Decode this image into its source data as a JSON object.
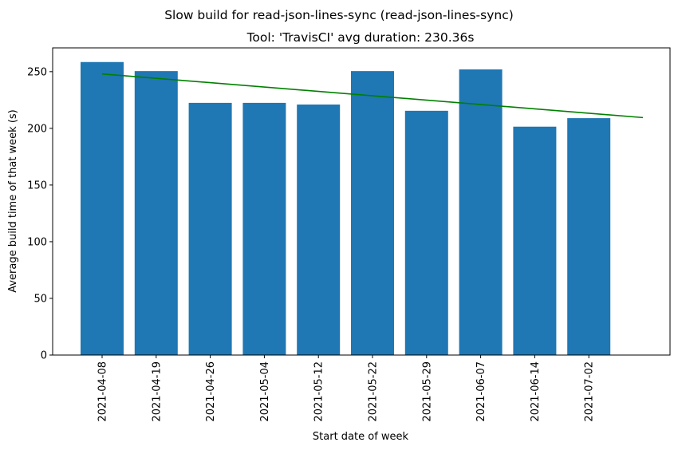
{
  "chart_data": {
    "type": "bar",
    "suptitle": "Slow build for read-json-lines-sync (read-json-lines-sync)",
    "title": "Tool: 'TravisCI' avg duration: 230.36s",
    "xlabel": "Start date of week",
    "ylabel": "Average build time of that week (s)",
    "categories": [
      "2021-04-08",
      "2021-04-19",
      "2021-04-26",
      "2021-05-04",
      "2021-05-12",
      "2021-05-22",
      "2021-05-29",
      "2021-06-07",
      "2021-06-14",
      "2021-07-02"
    ],
    "values": [
      258.5,
      250.5,
      222.5,
      222.5,
      221.0,
      250.5,
      215.5,
      252.0,
      201.5,
      209.0
    ],
    "ylim": [
      0,
      271
    ],
    "yticks": [
      0,
      50,
      100,
      150,
      200,
      250
    ],
    "trend_line": {
      "x_start": "2021-04-08",
      "y_start": 248.0,
      "x_end": "after 2021-07-02",
      "y_end": 209.5
    },
    "bar_color": "#1f77b4",
    "trend_color": "#008000",
    "grid": false,
    "legend": "none"
  }
}
